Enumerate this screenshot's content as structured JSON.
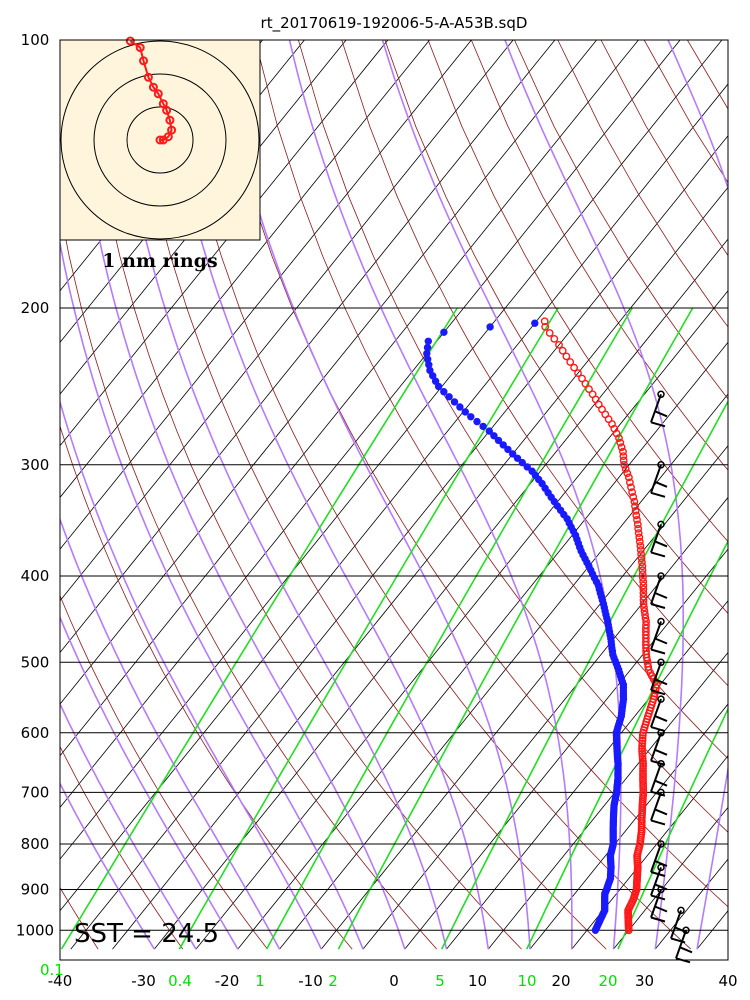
{
  "chart_data": {
    "type": "skew-t",
    "title": "rt_20170619-192006-5-A-A53B.sqD",
    "pressure_ticks": [
      100,
      200,
      300,
      400,
      500,
      600,
      700,
      800,
      900,
      1000
    ],
    "temperature_ticks": [
      -40,
      -30,
      -20,
      -10,
      0,
      10,
      20,
      30,
      40
    ],
    "temperature_range": [
      -40,
      40
    ],
    "pressure_range": [
      100,
      1050
    ],
    "mixing_ratio_ticks": [
      "0.1",
      "0.4",
      "1",
      "2",
      "5",
      "10",
      "20"
    ],
    "sst_label": "SST = 24.5",
    "hodograph": {
      "label": "1 nm rings",
      "ring_count": 3,
      "track_east_nm": [
        0.0,
        0.1,
        0.25,
        0.35,
        0.3,
        0.2,
        0.1,
        -0.05,
        -0.2,
        -0.35,
        -0.5,
        -0.6,
        -0.9
      ],
      "track_north_nm": [
        0.0,
        0.0,
        0.1,
        0.3,
        0.6,
        0.9,
        1.1,
        1.4,
        1.6,
        1.9,
        2.4,
        2.8,
        3.0
      ]
    },
    "series": [
      {
        "name": "Temperature",
        "color": "#ff1a1a",
        "points": [
          [
            1000,
            25.0
          ],
          [
            975,
            24.0
          ],
          [
            950,
            23.0
          ],
          [
            925,
            22.6
          ],
          [
            900,
            22.0
          ],
          [
            875,
            21.0
          ],
          [
            850,
            20.0
          ],
          [
            825,
            18.8
          ],
          [
            800,
            18.0
          ],
          [
            775,
            17.0
          ],
          [
            750,
            15.8
          ],
          [
            725,
            14.6
          ],
          [
            700,
            13.4
          ],
          [
            675,
            12.0
          ],
          [
            650,
            10.6
          ],
          [
            625,
            9.0
          ],
          [
            600,
            7.6
          ],
          [
            575,
            6.6
          ],
          [
            550,
            5.6
          ],
          [
            530,
            4.6
          ],
          [
            510,
            2.2
          ],
          [
            490,
            0.4
          ],
          [
            470,
            -1.2
          ],
          [
            450,
            -2.8
          ],
          [
            430,
            -4.8
          ],
          [
            410,
            -6.6
          ],
          [
            390,
            -8.6
          ],
          [
            370,
            -10.8
          ],
          [
            350,
            -13.2
          ],
          [
            330,
            -15.8
          ],
          [
            310,
            -18.8
          ],
          [
            300,
            -20.6
          ],
          [
            290,
            -22.0
          ],
          [
            280,
            -23.8
          ],
          [
            270,
            -26.0
          ],
          [
            260,
            -28.6
          ],
          [
            250,
            -31.2
          ],
          [
            240,
            -34.0
          ],
          [
            230,
            -37.0
          ],
          [
            220,
            -40.0
          ],
          [
            210,
            -43.4
          ],
          [
            207,
            -44.0
          ]
        ]
      },
      {
        "name": "Dew point",
        "color": "#1a1aff",
        "points": [
          [
            1000,
            21.0
          ],
          [
            975,
            20.6
          ],
          [
            950,
            20.2
          ],
          [
            930,
            19.4
          ],
          [
            910,
            18.6
          ],
          [
            900,
            18.4
          ],
          [
            875,
            17.8
          ],
          [
            850,
            16.8
          ],
          [
            825,
            15.6
          ],
          [
            800,
            14.8
          ],
          [
            775,
            13.6
          ],
          [
            750,
            12.4
          ],
          [
            725,
            11.2
          ],
          [
            700,
            10.2
          ],
          [
            675,
            9.0
          ],
          [
            650,
            7.6
          ],
          [
            625,
            6.0
          ],
          [
            600,
            4.4
          ],
          [
            575,
            3.4
          ],
          [
            550,
            2.0
          ],
          [
            530,
            0.6
          ],
          [
            510,
            -1.4
          ],
          [
            490,
            -3.6
          ],
          [
            470,
            -5.4
          ],
          [
            450,
            -7.4
          ],
          [
            430,
            -9.6
          ],
          [
            410,
            -12.0
          ],
          [
            390,
            -15.0
          ],
          [
            375,
            -17.4
          ],
          [
            360,
            -19.6
          ],
          [
            345,
            -22.2
          ],
          [
            330,
            -25.4
          ],
          [
            315,
            -28.6
          ],
          [
            305,
            -31.0
          ],
          [
            295,
            -34.0
          ],
          [
            285,
            -37.0
          ],
          [
            275,
            -40.0
          ],
          [
            265,
            -43.6
          ],
          [
            255,
            -47.0
          ],
          [
            245,
            -50.4
          ],
          [
            235,
            -53.0
          ],
          [
            225,
            -55.0
          ],
          [
            218,
            -56.0
          ],
          [
            213,
            -55.0
          ],
          [
            210,
            -50.0
          ],
          [
            208,
            -45.0
          ]
        ]
      }
    ],
    "wind_barbs": [
      {
        "pressure": 1000,
        "x_offset": 25
      },
      {
        "pressure": 950,
        "x_offset": 20
      },
      {
        "pressure": 900,
        "x_offset": 0
      },
      {
        "pressure": 850,
        "x_offset": 0
      },
      {
        "pressure": 800,
        "x_offset": 0
      },
      {
        "pressure": 700,
        "x_offset": 0
      },
      {
        "pressure": 650,
        "x_offset": 0
      },
      {
        "pressure": 600,
        "x_offset": 0
      },
      {
        "pressure": 550,
        "x_offset": 0
      },
      {
        "pressure": 500,
        "x_offset": 0
      },
      {
        "pressure": 450,
        "x_offset": 0
      },
      {
        "pressure": 400,
        "x_offset": 0
      },
      {
        "pressure": 350,
        "x_offset": 0
      },
      {
        "pressure": 300,
        "x_offset": 0
      },
      {
        "pressure": 250,
        "x_offset": 0
      }
    ]
  }
}
